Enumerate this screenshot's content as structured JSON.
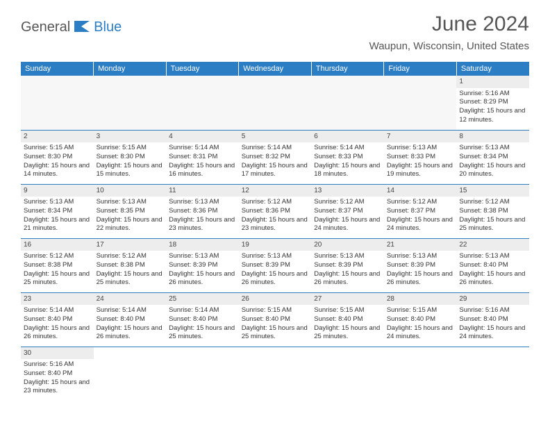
{
  "logo": {
    "part1": "General",
    "part2": "Blue"
  },
  "title": "June 2024",
  "location": "Waupun, Wisconsin, United States",
  "colors": {
    "header_bg": "#2b7dc4",
    "header_fg": "#ffffff",
    "daynum_bg": "#ededed",
    "cell_border": "#2b7dc4",
    "text": "#333333"
  },
  "day_headers": [
    "Sunday",
    "Monday",
    "Tuesday",
    "Wednesday",
    "Thursday",
    "Friday",
    "Saturday"
  ],
  "weeks": [
    [
      null,
      null,
      null,
      null,
      null,
      null,
      {
        "n": "1",
        "sr": "5:16 AM",
        "ss": "8:29 PM",
        "dl": "15 hours and 12 minutes."
      }
    ],
    [
      {
        "n": "2",
        "sr": "5:15 AM",
        "ss": "8:30 PM",
        "dl": "15 hours and 14 minutes."
      },
      {
        "n": "3",
        "sr": "5:15 AM",
        "ss": "8:30 PM",
        "dl": "15 hours and 15 minutes."
      },
      {
        "n": "4",
        "sr": "5:14 AM",
        "ss": "8:31 PM",
        "dl": "15 hours and 16 minutes."
      },
      {
        "n": "5",
        "sr": "5:14 AM",
        "ss": "8:32 PM",
        "dl": "15 hours and 17 minutes."
      },
      {
        "n": "6",
        "sr": "5:14 AM",
        "ss": "8:33 PM",
        "dl": "15 hours and 18 minutes."
      },
      {
        "n": "7",
        "sr": "5:13 AM",
        "ss": "8:33 PM",
        "dl": "15 hours and 19 minutes."
      },
      {
        "n": "8",
        "sr": "5:13 AM",
        "ss": "8:34 PM",
        "dl": "15 hours and 20 minutes."
      }
    ],
    [
      {
        "n": "9",
        "sr": "5:13 AM",
        "ss": "8:34 PM",
        "dl": "15 hours and 21 minutes."
      },
      {
        "n": "10",
        "sr": "5:13 AM",
        "ss": "8:35 PM",
        "dl": "15 hours and 22 minutes."
      },
      {
        "n": "11",
        "sr": "5:13 AM",
        "ss": "8:36 PM",
        "dl": "15 hours and 23 minutes."
      },
      {
        "n": "12",
        "sr": "5:12 AM",
        "ss": "8:36 PM",
        "dl": "15 hours and 23 minutes."
      },
      {
        "n": "13",
        "sr": "5:12 AM",
        "ss": "8:37 PM",
        "dl": "15 hours and 24 minutes."
      },
      {
        "n": "14",
        "sr": "5:12 AM",
        "ss": "8:37 PM",
        "dl": "15 hours and 24 minutes."
      },
      {
        "n": "15",
        "sr": "5:12 AM",
        "ss": "8:38 PM",
        "dl": "15 hours and 25 minutes."
      }
    ],
    [
      {
        "n": "16",
        "sr": "5:12 AM",
        "ss": "8:38 PM",
        "dl": "15 hours and 25 minutes."
      },
      {
        "n": "17",
        "sr": "5:12 AM",
        "ss": "8:38 PM",
        "dl": "15 hours and 25 minutes."
      },
      {
        "n": "18",
        "sr": "5:13 AM",
        "ss": "8:39 PM",
        "dl": "15 hours and 26 minutes."
      },
      {
        "n": "19",
        "sr": "5:13 AM",
        "ss": "8:39 PM",
        "dl": "15 hours and 26 minutes."
      },
      {
        "n": "20",
        "sr": "5:13 AM",
        "ss": "8:39 PM",
        "dl": "15 hours and 26 minutes."
      },
      {
        "n": "21",
        "sr": "5:13 AM",
        "ss": "8:39 PM",
        "dl": "15 hours and 26 minutes."
      },
      {
        "n": "22",
        "sr": "5:13 AM",
        "ss": "8:40 PM",
        "dl": "15 hours and 26 minutes."
      }
    ],
    [
      {
        "n": "23",
        "sr": "5:14 AM",
        "ss": "8:40 PM",
        "dl": "15 hours and 26 minutes."
      },
      {
        "n": "24",
        "sr": "5:14 AM",
        "ss": "8:40 PM",
        "dl": "15 hours and 26 minutes."
      },
      {
        "n": "25",
        "sr": "5:14 AM",
        "ss": "8:40 PM",
        "dl": "15 hours and 25 minutes."
      },
      {
        "n": "26",
        "sr": "5:15 AM",
        "ss": "8:40 PM",
        "dl": "15 hours and 25 minutes."
      },
      {
        "n": "27",
        "sr": "5:15 AM",
        "ss": "8:40 PM",
        "dl": "15 hours and 25 minutes."
      },
      {
        "n": "28",
        "sr": "5:15 AM",
        "ss": "8:40 PM",
        "dl": "15 hours and 24 minutes."
      },
      {
        "n": "29",
        "sr": "5:16 AM",
        "ss": "8:40 PM",
        "dl": "15 hours and 24 minutes."
      }
    ],
    [
      {
        "n": "30",
        "sr": "5:16 AM",
        "ss": "8:40 PM",
        "dl": "15 hours and 23 minutes."
      },
      null,
      null,
      null,
      null,
      null,
      null
    ]
  ],
  "labels": {
    "sunrise": "Sunrise: ",
    "sunset": "Sunset: ",
    "daylight": "Daylight: "
  }
}
